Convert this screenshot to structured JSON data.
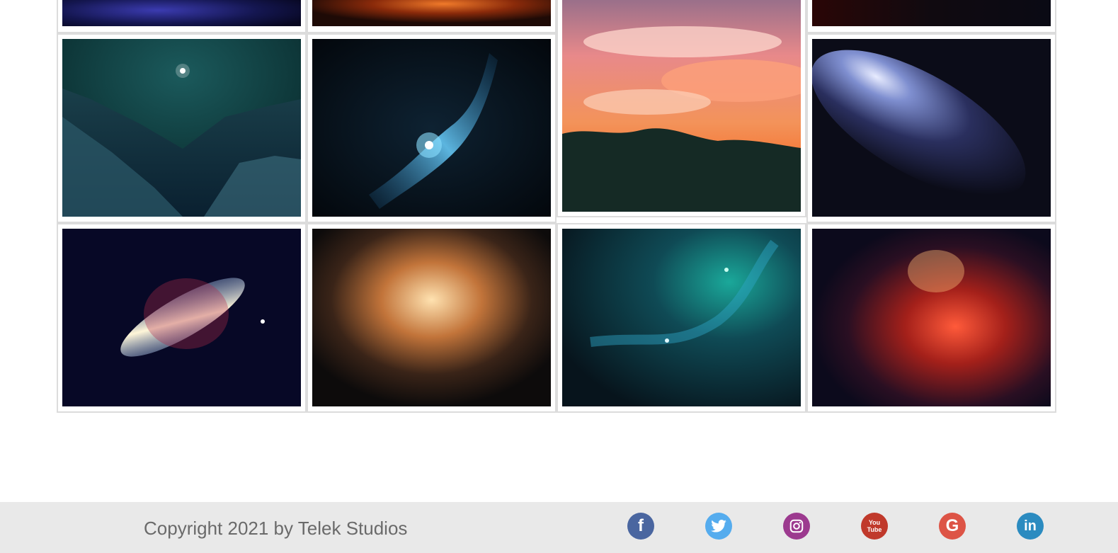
{
  "gallery": {
    "images": [
      {
        "name": "blue-nebula-partial"
      },
      {
        "name": "orange-nebula-partial"
      },
      {
        "name": "sunset-clouds-forest"
      },
      {
        "name": "dark-red-nebula-partial"
      },
      {
        "name": "teal-mountain-night"
      },
      {
        "name": "blue-galaxy-streak"
      },
      {
        "name": "spiral-galaxy-blue"
      },
      {
        "name": "starburst-galaxy"
      },
      {
        "name": "golden-nebula"
      },
      {
        "name": "teal-nebula"
      },
      {
        "name": "red-nebula"
      }
    ]
  },
  "footer": {
    "copyright": "Copyright 2021 by Telek Studios",
    "social": [
      {
        "name": "facebook-icon",
        "glyph": "f",
        "color": "#4a66a0"
      },
      {
        "name": "twitter-icon",
        "glyph": "t",
        "color": "#55acee"
      },
      {
        "name": "instagram-icon",
        "glyph": "ig",
        "color": "#9c3a8f"
      },
      {
        "name": "youtube-icon",
        "glyph": "You Tube",
        "color": "#c0392b"
      },
      {
        "name": "google-icon",
        "glyph": "G",
        "color": "#dd5446"
      },
      {
        "name": "linkedin-icon",
        "glyph": "in",
        "color": "#2b8bc0"
      }
    ]
  }
}
